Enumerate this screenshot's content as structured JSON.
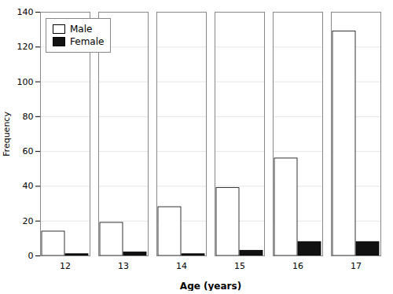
{
  "chart_data": {
    "type": "bar",
    "xlabel": "Age (years)",
    "ylabel": "Frequency",
    "categories": [
      "12",
      "13",
      "14",
      "15",
      "16",
      "17"
    ],
    "series": [
      {
        "name": "Male",
        "color": "#ffffff",
        "values": [
          14,
          19,
          28,
          39,
          56,
          129
        ]
      },
      {
        "name": "Female",
        "color": "#111111",
        "values": [
          1,
          2,
          1,
          3,
          8,
          8
        ]
      }
    ],
    "ylim": [
      0,
      140
    ],
    "yticks": [
      0,
      20,
      40,
      60,
      80,
      100,
      120,
      140
    ],
    "grid": true,
    "legend": "upper left"
  }
}
